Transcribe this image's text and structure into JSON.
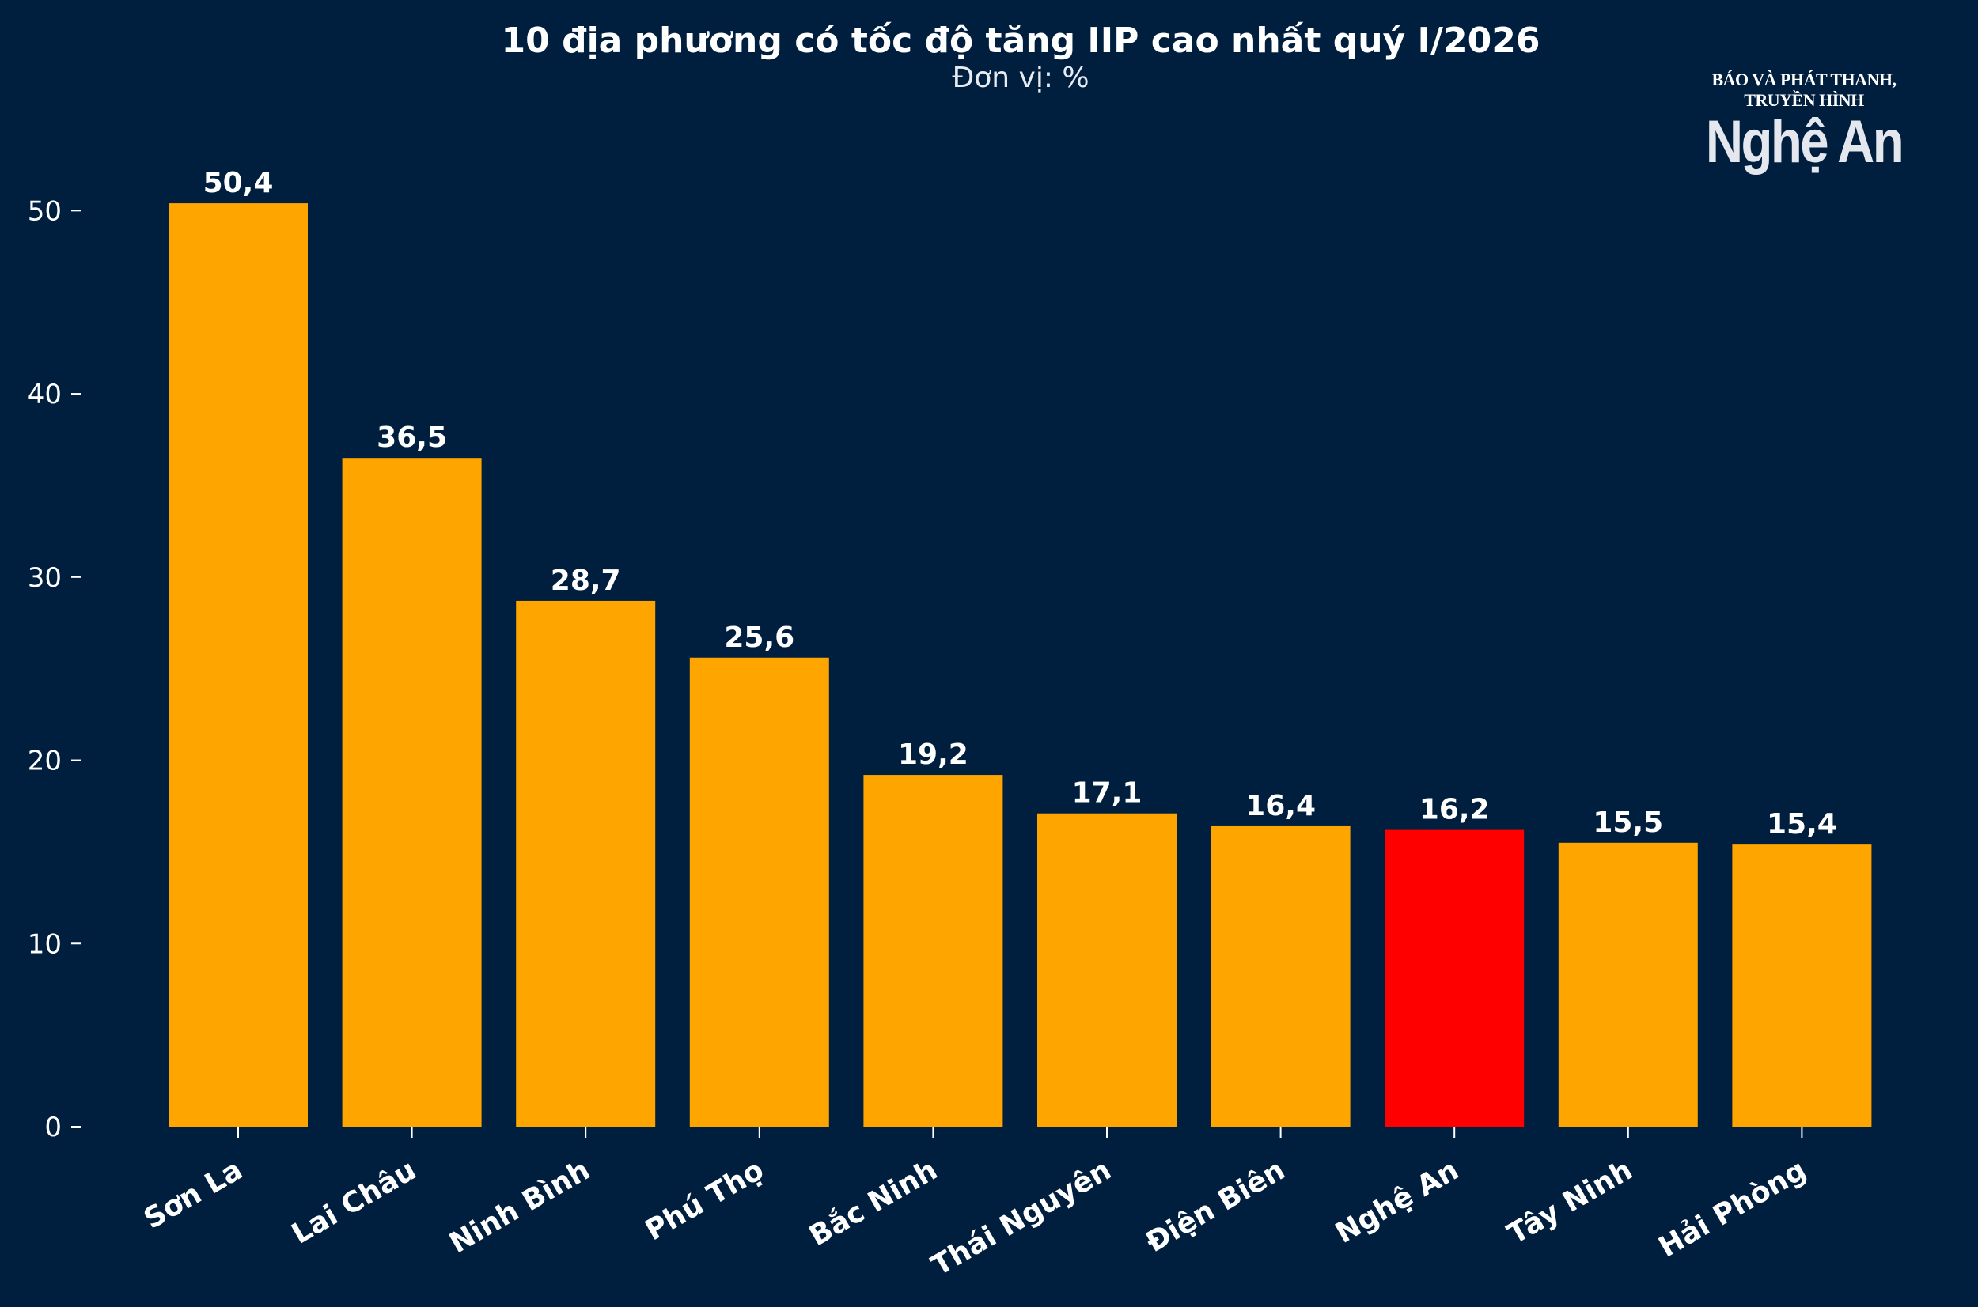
{
  "logo": {
    "tagline": "BÁO VÀ PHÁT THANH, TRUYỀN HÌNH",
    "name": "Nghệ An"
  },
  "chart_data": {
    "type": "bar",
    "title": "10 địa phương có tốc độ tăng IIP cao nhất quý I/2026",
    "subtitle": "Đơn vị: %",
    "categories": [
      "Sơn La",
      "Lai Châu",
      "Ninh Bình",
      "Phú Thọ",
      "Bắc Ninh",
      "Thái Nguyên",
      "Điện Biên",
      "Nghệ An",
      "Tây Ninh",
      "Hải Phòng"
    ],
    "values": [
      50.4,
      36.5,
      28.7,
      25.6,
      19.2,
      17.1,
      16.4,
      16.2,
      15.5,
      15.4
    ],
    "value_labels": [
      "50,4",
      "36,5",
      "28,7",
      "25,6",
      "19,2",
      "17,1",
      "16,4",
      "16,2",
      "15,5",
      "15,4"
    ],
    "highlight_category": "Nghệ An",
    "ylim": [
      0,
      52
    ],
    "yticks": [
      0,
      10,
      20,
      30,
      40,
      50
    ],
    "grid": false,
    "xlabel": "",
    "ylabel": "",
    "colors": {
      "background": "#001f3f",
      "bar": "#ffa500",
      "highlight": "#ff0000",
      "text": "#ffffff"
    }
  }
}
